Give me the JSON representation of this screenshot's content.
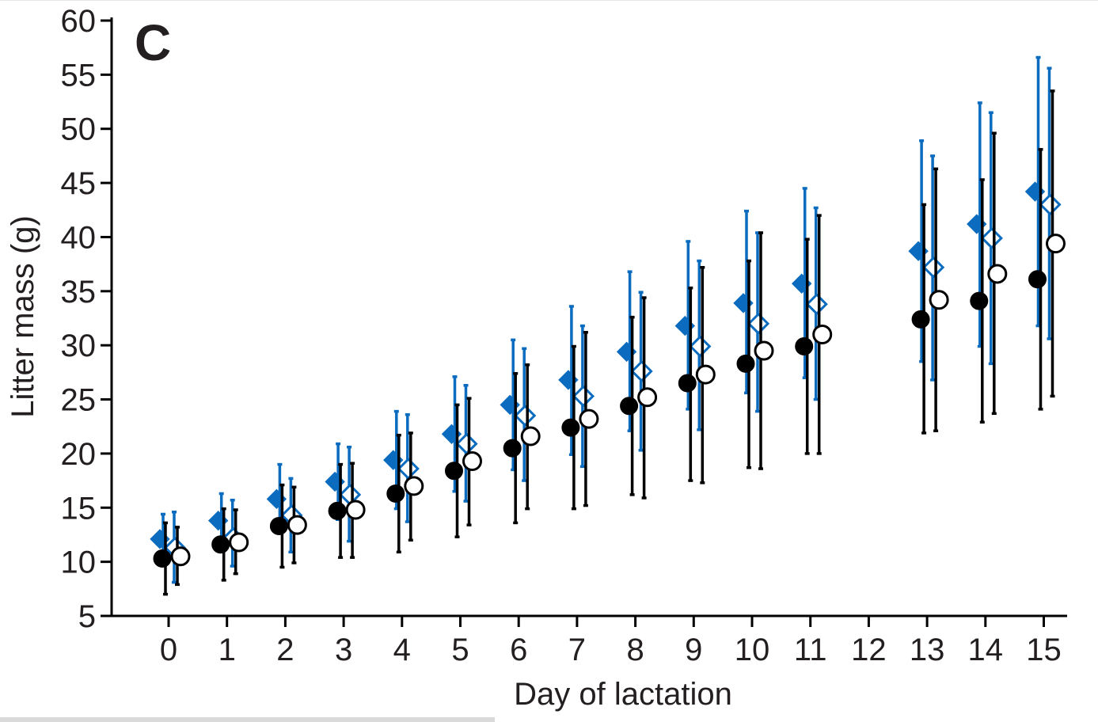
{
  "chart_data": {
    "type": "scatter",
    "panel_label": "C",
    "xlabel": "Day of lactation",
    "ylabel": "Litter mass (g)",
    "ylim": [
      5,
      60
    ],
    "y_ticks": [
      "5",
      "10",
      "15",
      "20",
      "25",
      "30",
      "35",
      "40",
      "45",
      "50",
      "55",
      "60"
    ],
    "categories": [
      "0",
      "1",
      "2",
      "3",
      "4",
      "5",
      "6",
      "7",
      "8",
      "9",
      "10",
      "11",
      "12",
      "13",
      "14",
      "15"
    ],
    "grid": false,
    "series": [
      {
        "marker": "diamond-filled",
        "color": "#0a6bbf",
        "x": [
          0,
          1,
          2,
          3,
          4,
          5,
          6,
          7,
          8,
          9,
          10,
          11,
          13,
          14,
          15
        ],
        "y": [
          12.1,
          13.8,
          15.8,
          17.4,
          19.4,
          21.8,
          24.5,
          26.8,
          29.4,
          31.8,
          33.9,
          35.7,
          38.7,
          41.2,
          44.2
        ],
        "err_low": [
          10.2,
          11.8,
          12.8,
          13.9,
          14.9,
          16.5,
          18.5,
          19.9,
          22.1,
          24.1,
          25.6,
          27.0,
          28.5,
          29.9,
          31.8
        ],
        "err_high": [
          14.4,
          16.3,
          19.0,
          20.9,
          23.9,
          27.1,
          30.5,
          33.6,
          36.8,
          39.6,
          42.4,
          44.5,
          48.9,
          52.4,
          56.6
        ]
      },
      {
        "marker": "diamond-open",
        "color": "#0a6bbf",
        "x": [
          0,
          1,
          2,
          3,
          4,
          5,
          6,
          7,
          8,
          9,
          10,
          11,
          13,
          14,
          15
        ],
        "y": [
          11.3,
          12.2,
          14.3,
          16.2,
          18.6,
          20.9,
          23.5,
          25.3,
          27.6,
          29.9,
          32.0,
          33.8,
          37.2,
          39.9,
          43.0
        ],
        "err_low": [
          8.1,
          9.6,
          10.9,
          11.9,
          13.7,
          15.6,
          17.5,
          18.8,
          20.3,
          22.2,
          23.9,
          25.0,
          26.8,
          28.3,
          30.6
        ],
        "err_high": [
          14.6,
          15.7,
          17.7,
          20.6,
          23.6,
          26.3,
          29.7,
          31.8,
          34.9,
          37.8,
          40.4,
          42.7,
          47.5,
          51.5,
          55.6
        ]
      },
      {
        "marker": "circle-filled",
        "color": "#000000",
        "x": [
          0,
          1,
          2,
          3,
          4,
          5,
          6,
          7,
          8,
          9,
          10,
          11,
          13,
          14,
          15
        ],
        "y": [
          10.3,
          11.6,
          13.3,
          14.7,
          16.3,
          18.4,
          20.5,
          22.4,
          24.4,
          26.5,
          28.3,
          29.9,
          32.4,
          34.1,
          36.1
        ],
        "err_low": [
          7.0,
          8.3,
          9.5,
          10.4,
          10.9,
          12.3,
          13.6,
          14.9,
          16.2,
          17.5,
          18.7,
          20.0,
          21.9,
          22.9,
          24.1
        ],
        "err_high": [
          13.6,
          14.9,
          17.1,
          19.0,
          21.7,
          24.5,
          27.4,
          29.9,
          32.6,
          35.3,
          37.8,
          39.8,
          43.0,
          45.3,
          48.1
        ]
      },
      {
        "marker": "circle-open",
        "color": "#000000",
        "x": [
          0,
          1,
          2,
          3,
          4,
          5,
          6,
          7,
          8,
          9,
          10,
          11,
          13,
          14,
          15
        ],
        "y": [
          10.5,
          11.8,
          13.4,
          14.8,
          17.0,
          19.3,
          21.6,
          23.2,
          25.2,
          27.3,
          29.5,
          31.0,
          34.2,
          36.6,
          39.4
        ],
        "err_low": [
          7.9,
          8.9,
          9.9,
          10.4,
          12.0,
          13.4,
          14.9,
          15.2,
          15.9,
          17.3,
          18.6,
          20.0,
          22.1,
          23.7,
          25.3
        ],
        "err_high": [
          13.2,
          14.8,
          16.9,
          19.1,
          21.9,
          25.1,
          28.2,
          31.2,
          34.4,
          37.2,
          40.4,
          42.0,
          46.3,
          49.6,
          53.5
        ]
      }
    ]
  }
}
